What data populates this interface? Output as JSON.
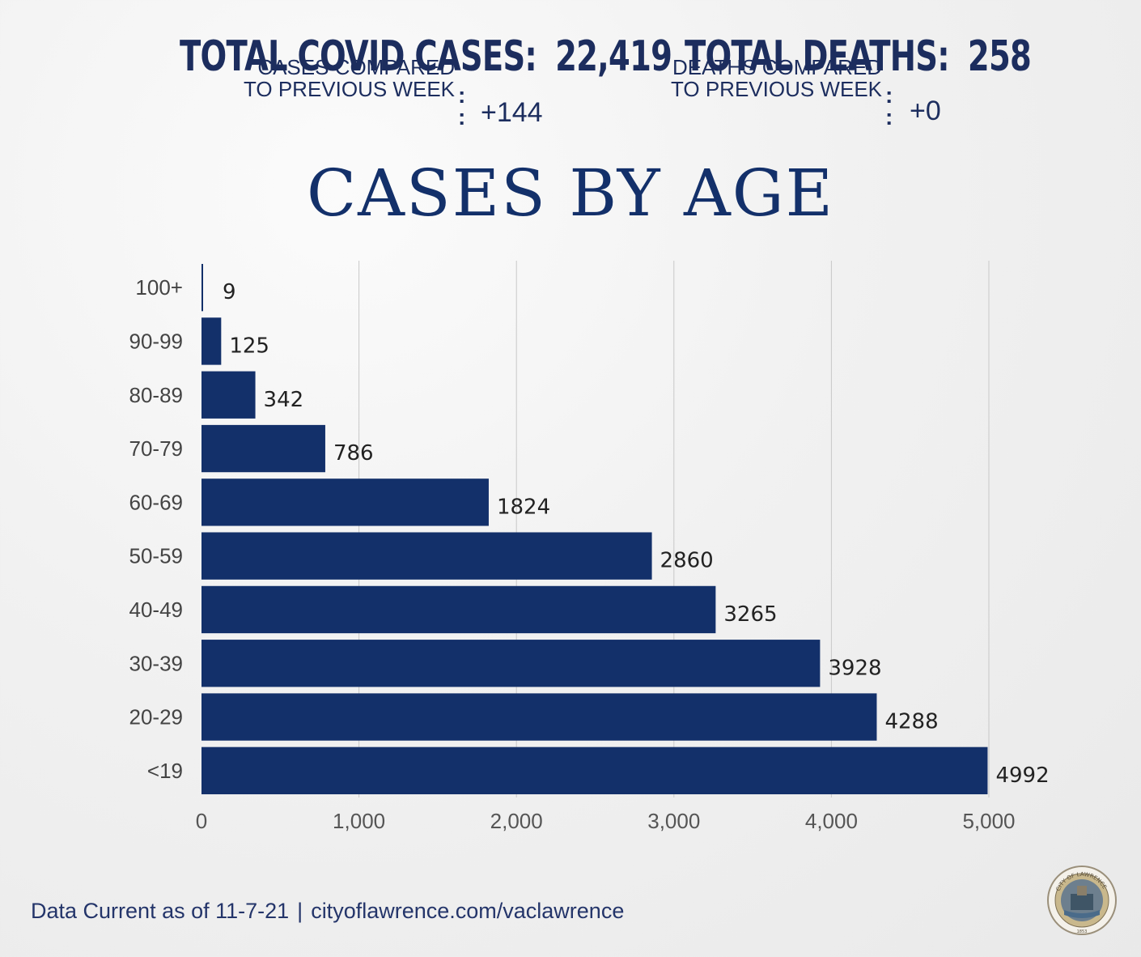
{
  "header": {
    "cases_label": "TOTAL COVID CASES:",
    "cases_value": "22,419",
    "cases_sub_line1": "CASES COMPARED",
    "cases_sub_line2": "TO PREVIOUS WEEK",
    "cases_delta": "+144",
    "deaths_label": "TOTAL DEATHS:",
    "deaths_value": "258",
    "deaths_sub_line1": "DEATHS COMPARED",
    "deaths_sub_line2": "TO PREVIOUS WEEK",
    "deaths_delta": "+0"
  },
  "footer": {
    "date_text": "Data Current as of 11-7-21",
    "separator": "|",
    "url": "cityoflawrence.com/vaclawrence"
  },
  "seal": {
    "icon": "city-seal-icon",
    "top_text": "CITY OF LAWRENCE",
    "year": "1853"
  },
  "colors": {
    "bar": "#13306a",
    "text": "#1c2d5e",
    "grid": "#c8c8c8"
  },
  "chart_data": {
    "type": "bar",
    "orientation": "horizontal",
    "title": "CASES BY AGE",
    "categories": [
      "100+",
      "90-99",
      "80-89",
      "70-79",
      "60-69",
      "50-59",
      "40-49",
      "30-39",
      "20-29",
      "<19"
    ],
    "values": [
      9,
      125,
      342,
      786,
      1824,
      2860,
      3265,
      3928,
      4288,
      4992
    ],
    "data_labels": [
      "9",
      "125",
      "342",
      "786",
      "1824",
      "2860",
      "3265",
      "3928",
      "4288",
      "4992"
    ],
    "xlim": [
      0,
      5000
    ],
    "xticks": [
      0,
      1000,
      2000,
      3000,
      4000,
      5000
    ],
    "xtick_labels": [
      "0",
      "1,000",
      "2,000",
      "3,000",
      "4,000",
      "5,000"
    ],
    "grid": true,
    "xlabel": "",
    "ylabel": ""
  }
}
